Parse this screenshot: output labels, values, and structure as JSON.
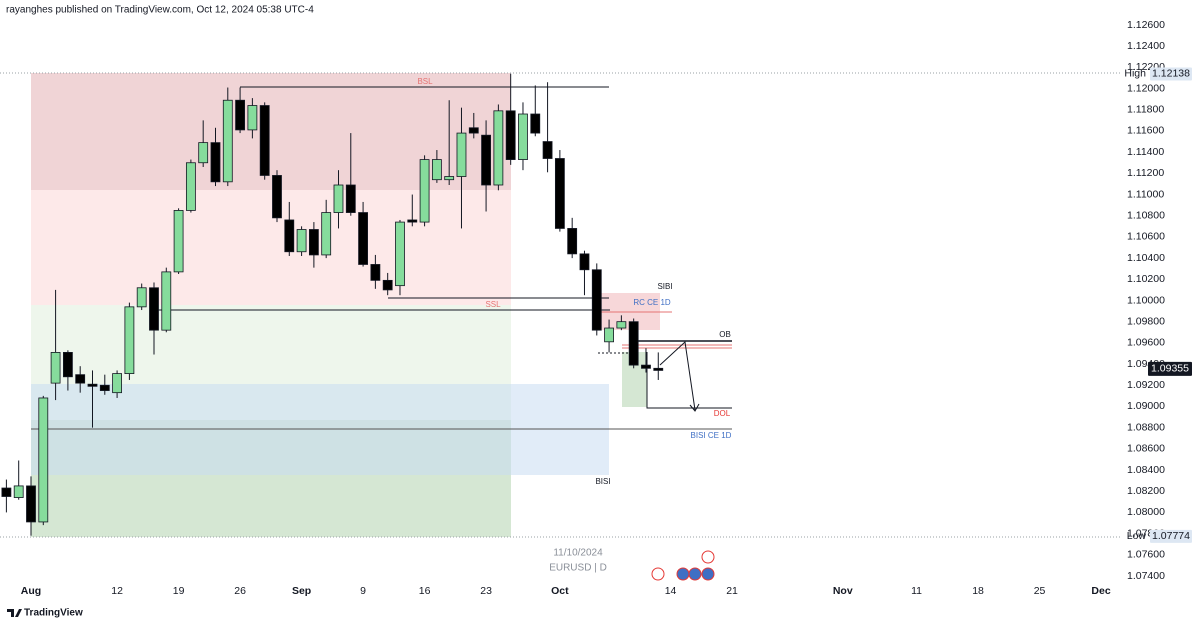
{
  "chart_data": {
    "type": "candlestick",
    "header": "rayanghes published on TradingView.com, Oct 12, 2024 05:38 UTC-4",
    "watermark_date": "11/10/2024",
    "symbol": "EURUSD | D",
    "brand": "TradingView",
    "up_color": "#86dc9c",
    "down_color": "#000000",
    "x": [
      -2,
      -1,
      0,
      1,
      2,
      3,
      4,
      5,
      6,
      7,
      8,
      9,
      10,
      11,
      12,
      13,
      14,
      15,
      16,
      17,
      18,
      19,
      20,
      21,
      22,
      23,
      24,
      25,
      26,
      27,
      28,
      29,
      30,
      31,
      32,
      33,
      34,
      35,
      36,
      37,
      38,
      39,
      40,
      41,
      42,
      43,
      44,
      45,
      46,
      47,
      48,
      49,
      50,
      51
    ],
    "open": [
      1.0823,
      1.0814,
      1.0825,
      1.0791,
      1.0922,
      1.0951,
      1.093,
      1.0921,
      1.092,
      1.0913,
      1.0931,
      1.0994,
      1.1012,
      1.0972,
      1.1027,
      1.1085,
      1.113,
      1.1149,
      1.1112,
      1.1189,
      1.1161,
      1.1184,
      1.1118,
      1.1076,
      1.1046,
      1.1067,
      1.1043,
      1.1083,
      1.1109,
      1.1083,
      1.1034,
      1.1019,
      1.1014,
      1.1076,
      1.1074,
      1.1114,
      1.1114,
      1.1117,
      1.1163,
      1.1156,
      1.1109,
      1.1179,
      1.1133,
      1.1176,
      1.115,
      1.1134,
      1.1068,
      1.1044,
      1.1029,
      1.0961,
      1.0974,
      1.098,
      1.0939,
      1.0936
    ],
    "high": [
      1.0831,
      1.0849,
      1.0834,
      1.091,
      1.101,
      1.0953,
      1.0938,
      1.0934,
      1.093,
      1.0934,
      1.0998,
      1.1016,
      1.1017,
      1.1031,
      1.1087,
      1.1133,
      1.117,
      1.1163,
      1.1201,
      1.1201,
      1.1191,
      1.1187,
      1.1123,
      1.1093,
      1.107,
      1.1074,
      1.1095,
      1.1123,
      1.1158,
      1.1093,
      1.1043,
      1.1026,
      1.1076,
      1.11,
      1.1137,
      1.1142,
      1.1189,
      1.1182,
      1.1177,
      1.117,
      1.1185,
      1.1214,
      1.1187,
      1.1203,
      1.1206,
      1.1142,
      1.1078,
      1.1047,
      1.1035,
      1.0982,
      1.0986,
      1.0983,
      1.0955,
      1.0951
    ],
    "low": [
      1.08,
      1.0812,
      1.0778,
      1.0788,
      1.0906,
      1.0915,
      1.0913,
      1.088,
      1.0911,
      1.0908,
      1.0925,
      1.0991,
      1.0949,
      1.097,
      1.1025,
      1.1083,
      1.1126,
      1.1108,
      1.1108,
      1.1158,
      1.1153,
      1.1114,
      1.1074,
      1.1042,
      1.1042,
      1.1031,
      1.104,
      1.1068,
      1.108,
      1.1032,
      1.1011,
      1.1005,
      1.1005,
      1.107,
      1.107,
      1.1111,
      1.1109,
      1.1068,
      1.1153,
      1.1084,
      1.1104,
      1.1128,
      1.1123,
      1.1155,
      1.1121,
      1.1065,
      1.104,
      1.1005,
      1.0967,
      1.0951,
      1.0972,
      1.0936,
      1.0932,
      1.0925
    ],
    "close": [
      1.0815,
      1.0825,
      1.0791,
      1.0908,
      1.0951,
      1.0928,
      1.0922,
      1.0919,
      1.0915,
      1.0931,
      1.0994,
      1.1012,
      1.0972,
      1.1027,
      1.1085,
      1.113,
      1.1149,
      1.1112,
      1.1189,
      1.1161,
      1.1184,
      1.1118,
      1.1078,
      1.1046,
      1.1067,
      1.1043,
      1.1083,
      1.1109,
      1.1083,
      1.1034,
      1.1019,
      1.101,
      1.1074,
      1.1074,
      1.1133,
      1.1133,
      1.1117,
      1.1158,
      1.1158,
      1.1109,
      1.1179,
      1.1133,
      1.1176,
      1.1158,
      1.1134,
      1.1068,
      1.1044,
      1.1029,
      1.0972,
      1.0974,
      1.098,
      1.0939,
      1.0936,
      1.0934
    ],
    "xlim": [
      -2.52,
      88.54
    ],
    "xticks": [
      {
        "value": 0,
        "label": "Aug"
      },
      {
        "value": 7,
        "label": "12"
      },
      {
        "value": 12,
        "label": "19"
      },
      {
        "value": 17,
        "label": "26"
      },
      {
        "value": 22,
        "label": "Sep"
      },
      {
        "value": 27,
        "label": "9"
      },
      {
        "value": 32,
        "label": "16"
      },
      {
        "value": 37,
        "label": "23"
      },
      {
        "value": 43,
        "label": "Oct"
      },
      {
        "value": 52,
        "label": "14"
      },
      {
        "value": 57,
        "label": "21"
      },
      {
        "value": 66,
        "label": "Nov"
      },
      {
        "value": 72,
        "label": "11"
      },
      {
        "value": 77,
        "label": "18"
      },
      {
        "value": 82,
        "label": "25"
      },
      {
        "value": 87,
        "label": "Dec"
      }
    ],
    "ylim": [
      1.07362,
      1.12836
    ],
    "yticks": [
      {
        "value": 1.126,
        "label": "1.12600"
      },
      {
        "value": 1.124,
        "label": "1.12400"
      },
      {
        "value": 1.122,
        "label": "1.12200"
      },
      {
        "value": 1.12,
        "label": "1.12000"
      },
      {
        "value": 1.118,
        "label": "1.11800"
      },
      {
        "value": 1.116,
        "label": "1.11600"
      },
      {
        "value": 1.114,
        "label": "1.11400"
      },
      {
        "value": 1.112,
        "label": "1.11200"
      },
      {
        "value": 1.11,
        "label": "1.11000"
      },
      {
        "value": 1.108,
        "label": "1.10800"
      },
      {
        "value": 1.106,
        "label": "1.10600"
      },
      {
        "value": 1.104,
        "label": "1.10400"
      },
      {
        "value": 1.102,
        "label": "1.10200"
      },
      {
        "value": 1.1,
        "label": "1.10000"
      },
      {
        "value": 1.098,
        "label": "1.09800"
      },
      {
        "value": 1.096,
        "label": "1.09600"
      },
      {
        "value": 1.094,
        "label": "1.09400"
      },
      {
        "value": 1.092,
        "label": "1.09200"
      },
      {
        "value": 1.09,
        "label": "1.09000"
      },
      {
        "value": 1.088,
        "label": "1.08800"
      },
      {
        "value": 1.086,
        "label": "1.08600"
      },
      {
        "value": 1.084,
        "label": "1.08400"
      },
      {
        "value": 1.082,
        "label": "1.08200"
      },
      {
        "value": 1.08,
        "label": "1.08000"
      },
      {
        "value": 1.078,
        "label": "1.07800"
      },
      {
        "value": 1.076,
        "label": "1.07600"
      },
      {
        "value": 1.074,
        "label": "1.07400"
      }
    ],
    "grid": false,
    "high_marker": {
      "label": "High",
      "value": 1.12138
    },
    "low_marker": {
      "label": "Low",
      "value": 1.07774
    },
    "last_price": 1.09355,
    "annotations": {
      "bsl": "BSL",
      "ssl": "SSL",
      "sibi": "SIBI",
      "rc": "RC CE 1D",
      "ob": "OB",
      "dol": "DOL",
      "bisi_ce": "BISI CE 1D",
      "bisi": "BISI"
    }
  }
}
